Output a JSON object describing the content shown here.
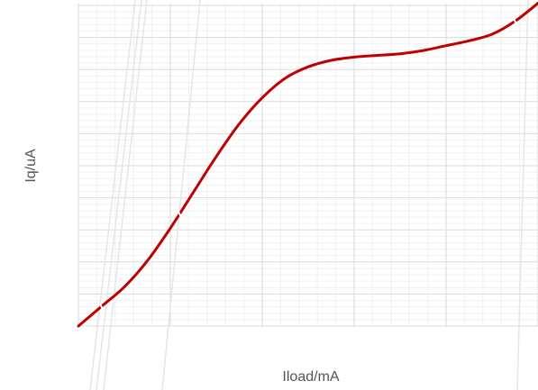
{
  "chart_data": {
    "type": "line",
    "title": "",
    "xlabel": "Iload/mA",
    "ylabel": "Iq/uA",
    "grid": true,
    "legend": "none",
    "xlim": [
      0,
      100
    ],
    "ylim": [
      0,
      100
    ],
    "series": [
      {
        "color": "#c00000",
        "x": [
          0,
          5,
          10,
          15,
          20,
          25,
          30,
          35,
          40,
          45,
          50,
          55,
          60,
          65,
          70,
          75,
          80,
          85,
          90,
          95,
          100
        ],
        "y": [
          0,
          6,
          12,
          20,
          30,
          41,
          52,
          62,
          70,
          76,
          79.5,
          81.5,
          82.5,
          83,
          83.5,
          84.5,
          86,
          87.5,
          89.5,
          93.5,
          99
        ]
      }
    ]
  }
}
